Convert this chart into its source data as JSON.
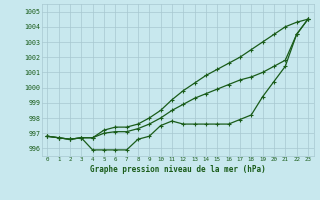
{
  "title": "Graphe pression niveau de la mer (hPa)",
  "background_color": "#c8e8ee",
  "grid_color": "#a8c8d0",
  "line_color": "#1a5c1a",
  "x_ticks": [
    0,
    1,
    2,
    3,
    4,
    5,
    6,
    7,
    8,
    9,
    10,
    11,
    12,
    13,
    14,
    15,
    16,
    17,
    18,
    19,
    20,
    21,
    22,
    23
  ],
  "ylim": [
    995.5,
    1005.5
  ],
  "yticks": [
    996,
    997,
    998,
    999,
    1000,
    1001,
    1002,
    1003,
    1004,
    1005
  ],
  "series_main": [
    996.8,
    996.7,
    996.6,
    996.7,
    995.9,
    995.9,
    995.9,
    995.9,
    996.6,
    996.8,
    997.5,
    997.8,
    997.6,
    997.6,
    997.6,
    997.6,
    997.6,
    997.9,
    998.2,
    999.4,
    1000.4,
    1001.4,
    1003.5,
    1004.5
  ],
  "series_high": [
    996.8,
    996.7,
    996.6,
    996.7,
    996.7,
    997.2,
    997.4,
    997.4,
    997.6,
    998.0,
    998.5,
    999.2,
    999.8,
    1000.3,
    1000.8,
    1001.2,
    1001.6,
    1002.0,
    1002.5,
    1003.0,
    1003.5,
    1004.0,
    1004.3,
    1004.5
  ],
  "series_mid": [
    996.8,
    996.7,
    996.6,
    996.7,
    996.7,
    997.0,
    997.1,
    997.1,
    997.3,
    997.6,
    998.0,
    998.5,
    998.9,
    999.3,
    999.6,
    999.9,
    1000.2,
    1000.5,
    1000.7,
    1001.0,
    1001.4,
    1001.8,
    1003.5,
    1004.5
  ]
}
